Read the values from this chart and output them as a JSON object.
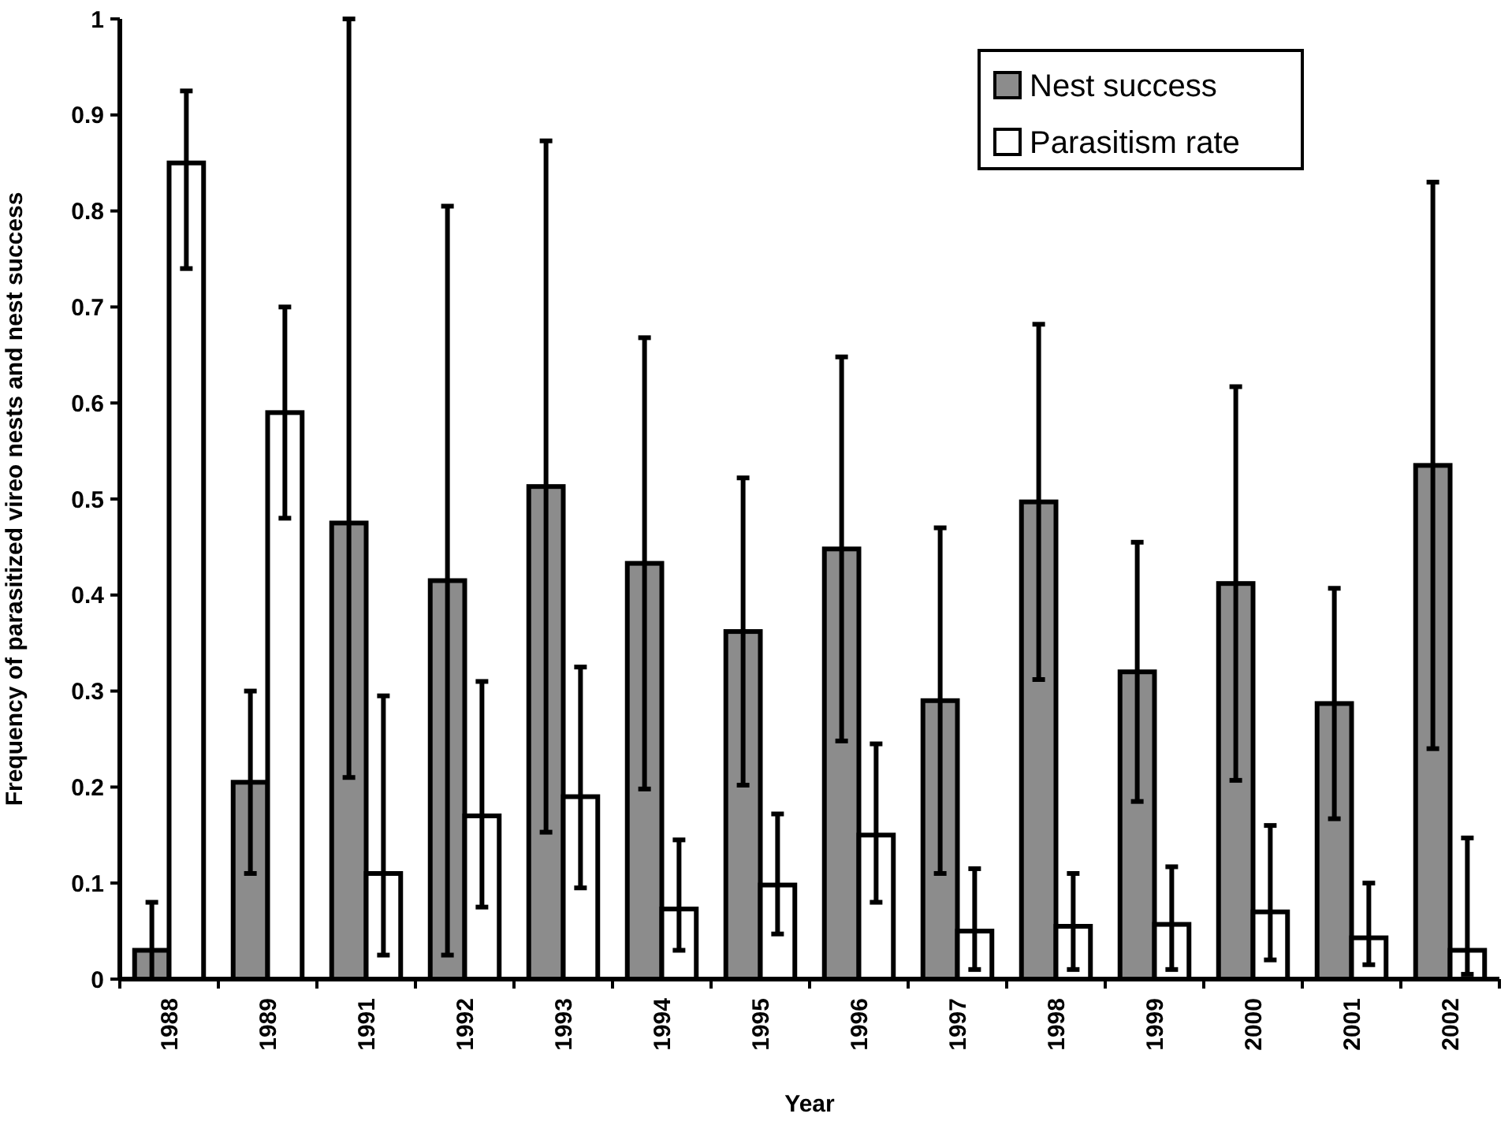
{
  "chart_data": {
    "type": "bar",
    "xlabel": "Year",
    "ylabel": "Frequency of parasitized vireo nests and nest success",
    "categories": [
      "1988",
      "1989",
      "1991",
      "1992",
      "1993",
      "1994",
      "1995",
      "1996",
      "1997",
      "1998",
      "1999",
      "2000",
      "2001",
      "2002"
    ],
    "series": [
      {
        "name": "Nest success",
        "color": "#8c8c8c",
        "values": [
          0.03,
          0.205,
          0.475,
          0.415,
          0.513,
          0.433,
          0.362,
          0.448,
          0.29,
          0.497,
          0.32,
          0.412,
          0.287,
          0.535
        ],
        "errors": [
          [
            0,
            0.08
          ],
          0.095,
          [
            0.21,
            1
          ],
          0.39,
          0.36,
          0.235,
          0.16,
          0.2,
          0.18,
          0.185,
          0.135,
          0.205,
          0.12,
          0.295
        ]
      },
      {
        "name": "Parasitism rate",
        "color": "#ffffff",
        "values": [
          0.85,
          0.59,
          0.11,
          0.17,
          0.19,
          0.073,
          0.098,
          0.15,
          0.05,
          0.055,
          0.057,
          0.07,
          0.043,
          0.03
        ],
        "errors": [
          [
            0.74,
            0.925
          ],
          [
            0.48,
            0.7
          ],
          [
            0.025,
            0.295
          ],
          [
            0.075,
            0.31
          ],
          [
            0.095,
            0.325
          ],
          [
            0.03,
            0.145
          ],
          [
            0.047,
            0.172
          ],
          [
            0.08,
            0.245
          ],
          [
            0.01,
            0.115
          ],
          [
            0.01,
            0.11
          ],
          [
            0.01,
            0.117
          ],
          [
            0.02,
            0.16
          ],
          [
            0.015,
            0.1
          ],
          [
            0.005,
            0.147
          ]
        ]
      }
    ],
    "ylim": [
      0,
      1
    ],
    "yticks": [
      0,
      0.1,
      0.2,
      0.3,
      0.4,
      0.5,
      0.6,
      0.7,
      0.8,
      0.9,
      1
    ],
    "grid": false,
    "legend": "top right"
  }
}
